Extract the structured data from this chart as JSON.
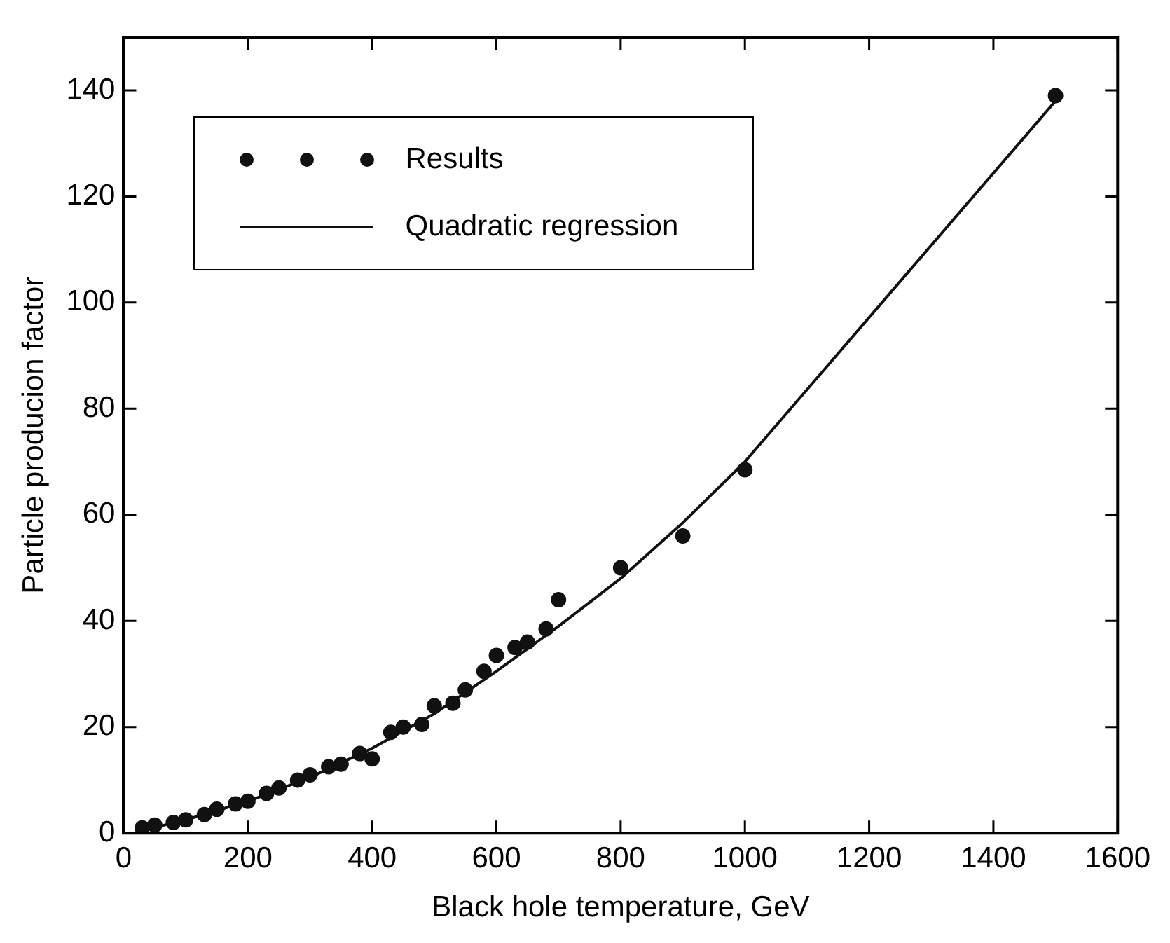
{
  "chart_data": {
    "type": "scatter",
    "xlabel": "Black hole temperature, GeV",
    "ylabel": "Particle producion factor",
    "xlim": [
      0,
      1600
    ],
    "xticks": [
      0,
      200,
      400,
      600,
      800,
      1000,
      1200,
      1400,
      1600
    ],
    "ylim": [
      0,
      150
    ],
    "yticks": [
      0,
      20,
      40,
      60,
      80,
      100,
      120,
      140
    ],
    "grid": false,
    "legend": "top left",
    "marker": "circle",
    "series": [
      {
        "name": "Results",
        "type": "scatter",
        "color": "#111111",
        "x": [
          30,
          50,
          80,
          100,
          130,
          150,
          180,
          200,
          230,
          250,
          280,
          300,
          330,
          350,
          380,
          400,
          430,
          450,
          480,
          500,
          530,
          550,
          580,
          600,
          630,
          650,
          680,
          700,
          800,
          900,
          1000,
          1500
        ],
        "values": [
          1,
          1.5,
          2,
          2.5,
          3.5,
          4.5,
          5.5,
          6,
          7.5,
          8.5,
          10,
          11,
          12.5,
          13,
          15,
          14,
          19,
          20,
          20.5,
          24,
          24.5,
          27,
          30.5,
          33.5,
          35,
          36,
          38.5,
          44,
          50,
          56,
          68.5,
          139
        ]
      },
      {
        "name": "Quadratic regression",
        "type": "line",
        "color": "#111111",
        "line_style": "solid",
        "marker": "none",
        "x": [
          30,
          100,
          200,
          300,
          400,
          500,
          600,
          700,
          800,
          900,
          1000,
          1500
        ],
        "values": [
          0.5,
          2.5,
          6,
          10.5,
          16,
          22.5,
          30.5,
          39,
          48,
          58.5,
          70,
          138
        ]
      }
    ]
  }
}
